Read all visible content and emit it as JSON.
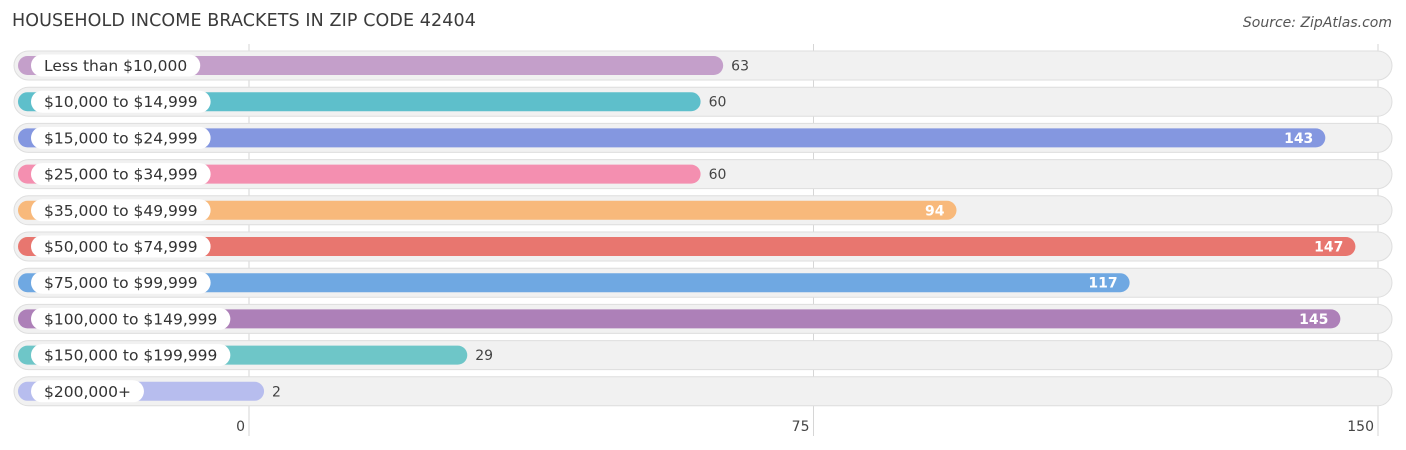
{
  "chart_data": {
    "type": "bar",
    "orientation": "horizontal",
    "title": "HOUSEHOLD INCOME BRACKETS IN ZIP CODE 42404",
    "source": "Source: ZipAtlas.com",
    "categories": [
      "Less than $10,000",
      "$10,000 to $14,999",
      "$15,000 to $24,999",
      "$25,000 to $34,999",
      "$35,000 to $49,999",
      "$50,000 to $74,999",
      "$75,000 to $99,999",
      "$100,000 to $149,999",
      "$150,000 to $199,999",
      "$200,000+"
    ],
    "values": [
      63,
      60,
      143,
      60,
      94,
      147,
      117,
      145,
      29,
      2
    ],
    "colors": [
      "#c49fca",
      "#5ebfcb",
      "#8497e0",
      "#f48fb0",
      "#f8b97b",
      "#e8766f",
      "#6fa8e2",
      "#ad80b8",
      "#6ec6c8",
      "#b7bdee"
    ],
    "xlim": [
      0,
      150
    ],
    "xticks": [
      0,
      75,
      150
    ],
    "grid": true
  }
}
